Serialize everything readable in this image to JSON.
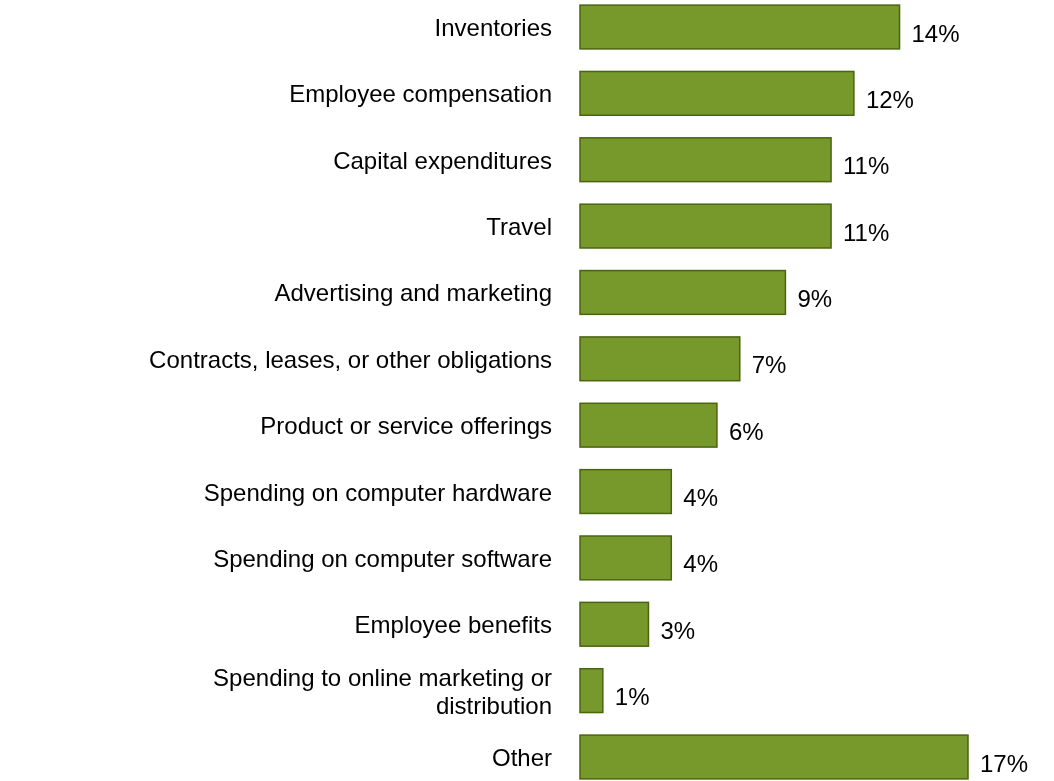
{
  "chart_data": {
    "type": "bar",
    "orientation": "horizontal",
    "categories": [
      "Inventories",
      "Employee compensation",
      "Capital expenditures",
      "Travel",
      "Advertising and marketing",
      "Contracts, leases, or other obligations",
      "Product or service offerings",
      "Spending on computer hardware",
      "Spending on computer software",
      "Employee benefits",
      "Spending to online marketing or distribution",
      "Other"
    ],
    "values": [
      14,
      12,
      11,
      11,
      9,
      7,
      6,
      4,
      4,
      3,
      1,
      17
    ],
    "value_labels": [
      "14%",
      "12%",
      "11%",
      "11%",
      "9%",
      "7%",
      "6%",
      "4%",
      "4%",
      "3%",
      "1%",
      "17%"
    ],
    "color": "#77992b"
  }
}
